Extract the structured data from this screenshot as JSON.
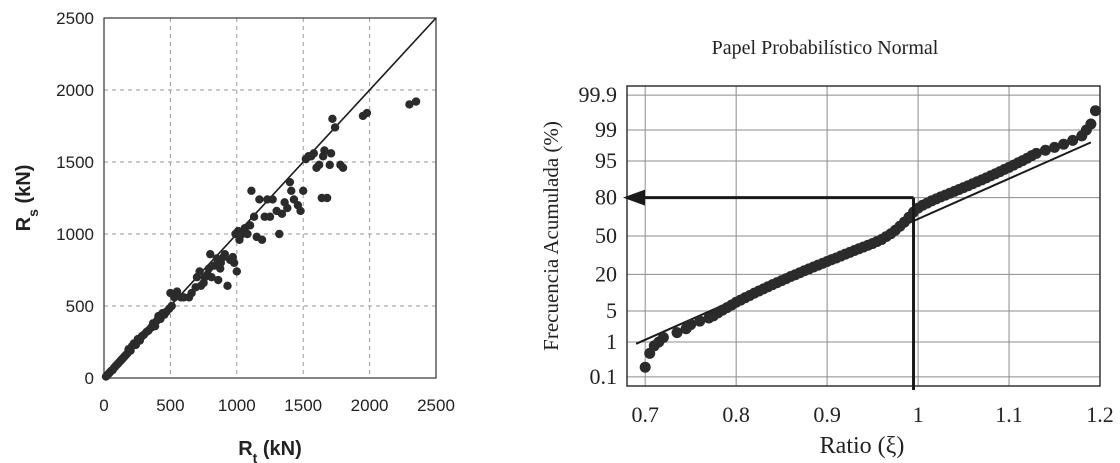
{
  "chart_data": [
    {
      "type": "scatter",
      "title": "",
      "xlabel": {
        "main": "R",
        "sub": "t",
        "tail": " (kN)"
      },
      "ylabel": {
        "main": "R",
        "sub": "s",
        "tail": " (kN)"
      },
      "xlim": [
        0,
        2500
      ],
      "ylim": [
        0,
        2500
      ],
      "xticks": [
        0,
        500,
        1000,
        1500,
        2000,
        2500
      ],
      "yticks": [
        0,
        500,
        1000,
        1500,
        2000,
        2500
      ],
      "grid": true,
      "reference_line": {
        "type": "y=x",
        "from": [
          0,
          0
        ],
        "to": [
          2500,
          2500
        ]
      },
      "marker_color": "#2b2b2b",
      "series": [
        {
          "points": [
            [
              15,
              10
            ],
            [
              25,
              20
            ],
            [
              35,
              30
            ],
            [
              45,
              40
            ],
            [
              55,
              50
            ],
            [
              65,
              55
            ],
            [
              75,
              70
            ],
            [
              85,
              80
            ],
            [
              95,
              90
            ],
            [
              105,
              100
            ],
            [
              115,
              110
            ],
            [
              125,
              120
            ],
            [
              135,
              130
            ],
            [
              145,
              140
            ],
            [
              155,
              150
            ],
            [
              165,
              160
            ],
            [
              175,
              170
            ],
            [
              185,
              200
            ],
            [
              200,
              190
            ],
            [
              210,
              220
            ],
            [
              225,
              240
            ],
            [
              240,
              230
            ],
            [
              255,
              270
            ],
            [
              270,
              260
            ],
            [
              285,
              290
            ],
            [
              300,
              300
            ],
            [
              320,
              320
            ],
            [
              335,
              330
            ],
            [
              355,
              350
            ],
            [
              370,
              380
            ],
            [
              385,
              360
            ],
            [
              400,
              400
            ],
            [
              410,
              430
            ],
            [
              425,
              410
            ],
            [
              440,
              450
            ],
            [
              455,
              440
            ],
            [
              470,
              460
            ],
            [
              490,
              480
            ],
            [
              510,
              500
            ],
            [
              530,
              560
            ],
            [
              520,
              580
            ],
            [
              550,
              600
            ],
            [
              500,
              590
            ],
            [
              580,
              560
            ],
            [
              600,
              560
            ],
            [
              640,
              560
            ],
            [
              660,
              590
            ],
            [
              690,
              630
            ],
            [
              700,
              700
            ],
            [
              720,
              740
            ],
            [
              730,
              640
            ],
            [
              750,
              660
            ],
            [
              760,
              700
            ],
            [
              780,
              720
            ],
            [
              790,
              760
            ],
            [
              800,
              860
            ],
            [
              810,
              700
            ],
            [
              830,
              780
            ],
            [
              850,
              830
            ],
            [
              860,
              680
            ],
            [
              875,
              760
            ],
            [
              880,
              800
            ],
            [
              900,
              840
            ],
            [
              910,
              860
            ],
            [
              930,
              640
            ],
            [
              950,
              820
            ],
            [
              970,
              840
            ],
            [
              980,
              800
            ],
            [
              990,
              1000
            ],
            [
              1000,
              740
            ],
            [
              1010,
              1020
            ],
            [
              1020,
              960
            ],
            [
              1040,
              1000
            ],
            [
              1060,
              1040
            ],
            [
              1080,
              1000
            ],
            [
              1100,
              1060
            ],
            [
              1110,
              1300
            ],
            [
              1130,
              1120
            ],
            [
              1150,
              980
            ],
            [
              1170,
              1240
            ],
            [
              1190,
              960
            ],
            [
              1210,
              1120
            ],
            [
              1230,
              1240
            ],
            [
              1250,
              1120
            ],
            [
              1270,
              1240
            ],
            [
              1300,
              1160
            ],
            [
              1320,
              1000
            ],
            [
              1340,
              1140
            ],
            [
              1360,
              1220
            ],
            [
              1380,
              1180
            ],
            [
              1400,
              1360
            ],
            [
              1410,
              1300
            ],
            [
              1430,
              1240
            ],
            [
              1460,
              1200
            ],
            [
              1480,
              1160
            ],
            [
              1500,
              1300
            ],
            [
              1520,
              1520
            ],
            [
              1540,
              1540
            ],
            [
              1560,
              1540
            ],
            [
              1580,
              1560
            ],
            [
              1600,
              1460
            ],
            [
              1620,
              1480
            ],
            [
              1640,
              1250
            ],
            [
              1650,
              1540
            ],
            [
              1660,
              1580
            ],
            [
              1680,
              1250
            ],
            [
              1700,
              1480
            ],
            [
              1710,
              1560
            ],
            [
              1720,
              1800
            ],
            [
              1740,
              1740
            ],
            [
              1780,
              1480
            ],
            [
              1800,
              1460
            ],
            [
              1950,
              1820
            ],
            [
              1980,
              1840
            ],
            [
              2300,
              1900
            ],
            [
              2350,
              1920
            ]
          ]
        }
      ]
    },
    {
      "type": "scatter",
      "title": "Papel Probabilístico Normal",
      "xlabel": "Ratio (ξ)",
      "ylabel": "Frecuencia Acumulada (%)",
      "xlim": [
        0.68,
        1.2
      ],
      "ylim_percent": [
        0.05,
        99.95
      ],
      "yscale": "normal-probability",
      "xticks": [
        0.7,
        0.8,
        0.9,
        1,
        1.1,
        1.2
      ],
      "xtick_labels": [
        "0.7",
        "0.8",
        "0.9",
        "1",
        "1.1",
        "1.2"
      ],
      "yticks": [
        0.1,
        1,
        5,
        20,
        50,
        80,
        95,
        99,
        99.9
      ],
      "ytick_labels": [
        "0.1",
        "1",
        "5",
        "20",
        "50",
        "80",
        "95",
        "99",
        "99.9"
      ],
      "grid": true,
      "marker_color": "#2b2b2b",
      "fit_line": {
        "from": [
          0.69,
          0.9
        ],
        "to": [
          1.19,
          98.0
        ]
      },
      "annotation": {
        "x": 0.995,
        "y_percent": 80,
        "arrow_to_x": 0.68
      },
      "series": [
        {
          "points": [
            [
              0.7,
              0.2
            ],
            [
              0.705,
              0.5
            ],
            [
              0.71,
              0.8
            ],
            [
              0.715,
              1.0
            ],
            [
              0.72,
              1.3
            ],
            [
              0.735,
              1.7
            ],
            [
              0.745,
              2.1
            ],
            [
              0.75,
              2.6
            ],
            [
              0.76,
              3.1
            ],
            [
              0.77,
              3.6
            ],
            [
              0.775,
              4.0
            ],
            [
              0.78,
              4.6
            ],
            [
              0.785,
              5.2
            ],
            [
              0.79,
              5.8
            ],
            [
              0.795,
              6.5
            ],
            [
              0.8,
              7.3
            ],
            [
              0.805,
              8.0
            ],
            [
              0.81,
              8.8
            ],
            [
              0.815,
              9.6
            ],
            [
              0.82,
              10.5
            ],
            [
              0.825,
              11.4
            ],
            [
              0.83,
              12.3
            ],
            [
              0.835,
              13.3
            ],
            [
              0.84,
              14.3
            ],
            [
              0.845,
              15.3
            ],
            [
              0.85,
              16.4
            ],
            [
              0.855,
              17.5
            ],
            [
              0.86,
              18.7
            ],
            [
              0.865,
              19.8
            ],
            [
              0.87,
              21.0
            ],
            [
              0.875,
              22.3
            ],
            [
              0.88,
              23.5
            ],
            [
              0.885,
              24.8
            ],
            [
              0.89,
              26.1
            ],
            [
              0.895,
              27.4
            ],
            [
              0.9,
              28.8
            ],
            [
              0.905,
              30.2
            ],
            [
              0.91,
              31.5
            ],
            [
              0.915,
              33.0
            ],
            [
              0.92,
              34.5
            ],
            [
              0.925,
              36.0
            ],
            [
              0.93,
              37.5
            ],
            [
              0.935,
              39.0
            ],
            [
              0.94,
              40.5
            ],
            [
              0.945,
              42.0
            ],
            [
              0.95,
              43.5
            ],
            [
              0.955,
              45.2
            ],
            [
              0.96,
              47.0
            ],
            [
              0.965,
              49.5
            ],
            [
              0.97,
              52.0
            ],
            [
              0.975,
              55.0
            ],
            [
              0.98,
              58.5
            ],
            [
              0.985,
              62.0
            ],
            [
              0.99,
              66.0
            ],
            [
              0.995,
              70.0
            ],
            [
              1.0,
              73.0
            ],
            [
              1.005,
              75.0
            ],
            [
              1.01,
              76.5
            ],
            [
              1.015,
              78.0
            ],
            [
              1.02,
              79.2
            ],
            [
              1.025,
              80.5
            ],
            [
              1.03,
              81.5
            ],
            [
              1.035,
              82.6
            ],
            [
              1.04,
              83.6
            ],
            [
              1.045,
              84.6
            ],
            [
              1.05,
              85.6
            ],
            [
              1.055,
              86.5
            ],
            [
              1.06,
              87.4
            ],
            [
              1.065,
              88.3
            ],
            [
              1.07,
              89.1
            ],
            [
              1.075,
              89.9
            ],
            [
              1.08,
              90.7
            ],
            [
              1.085,
              91.4
            ],
            [
              1.09,
              92.1
            ],
            [
              1.095,
              92.8
            ],
            [
              1.1,
              93.4
            ],
            [
              1.105,
              94.0
            ],
            [
              1.11,
              94.6
            ],
            [
              1.115,
              95.1
            ],
            [
              1.12,
              95.6
            ],
            [
              1.125,
              96.1
            ],
            [
              1.13,
              96.5
            ],
            [
              1.14,
              97.0
            ],
            [
              1.15,
              97.4
            ],
            [
              1.16,
              97.8
            ],
            [
              1.17,
              98.2
            ],
            [
              1.18,
              98.6
            ],
            [
              1.185,
              99.0
            ],
            [
              1.19,
              99.3
            ],
            [
              1.195,
              99.7
            ]
          ]
        }
      ]
    }
  ]
}
